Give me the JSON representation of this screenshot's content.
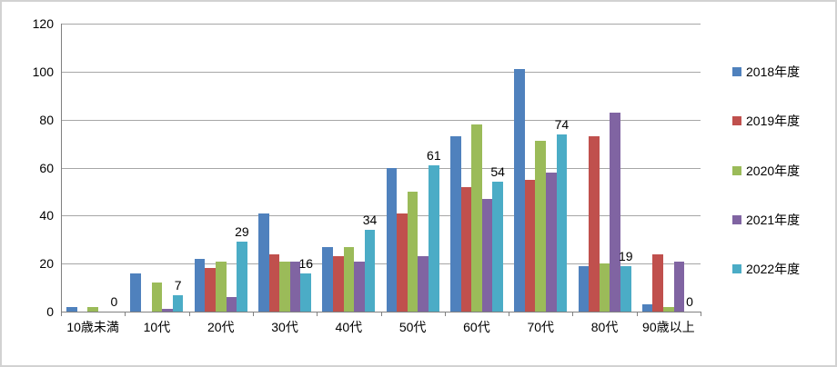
{
  "chart_data": {
    "type": "bar",
    "title": "",
    "xlabel": "",
    "ylabel": "",
    "categories": [
      "10歳未満",
      "10代",
      "20代",
      "30代",
      "40代",
      "50代",
      "60代",
      "70代",
      "80代",
      "90歳以上"
    ],
    "series": [
      {
        "name": "2018年度",
        "color": "#4F81BD",
        "values": [
          2,
          16,
          22,
          41,
          27,
          60,
          73,
          101,
          19,
          3
        ],
        "show_labels": false
      },
      {
        "name": "2019年度",
        "color": "#C0504D",
        "values": [
          0,
          0,
          18,
          24,
          23,
          41,
          52,
          55,
          73,
          24
        ],
        "show_labels": false
      },
      {
        "name": "2020年度",
        "color": "#9BBB59",
        "values": [
          2,
          12,
          21,
          21,
          27,
          50,
          78,
          71,
          20,
          2
        ],
        "show_labels": false
      },
      {
        "name": "2021年度",
        "color": "#8064A2",
        "values": [
          0,
          1,
          6,
          21,
          21,
          23,
          47,
          58,
          83,
          21
        ],
        "show_labels": false
      },
      {
        "name": "2022年度",
        "color": "#4BACC6",
        "values": [
          0,
          7,
          29,
          16,
          34,
          61,
          54,
          74,
          19,
          0
        ],
        "show_labels": true
      }
    ],
    "data_labels_2022": [
      "0",
      "7",
      "29",
      "16",
      "34",
      "61",
      "54",
      "74",
      "19",
      "0"
    ],
    "ylim": [
      0,
      120
    ],
    "yticks": [
      0,
      20,
      40,
      60,
      80,
      100,
      120
    ],
    "grid": true,
    "legend_position": "right"
  },
  "styles": {
    "grid_color": "#A6A6A6",
    "axis_color": "#808080",
    "text_color": "#000000",
    "background": "#FFFFFF",
    "border_color": "#D2D2D2"
  }
}
